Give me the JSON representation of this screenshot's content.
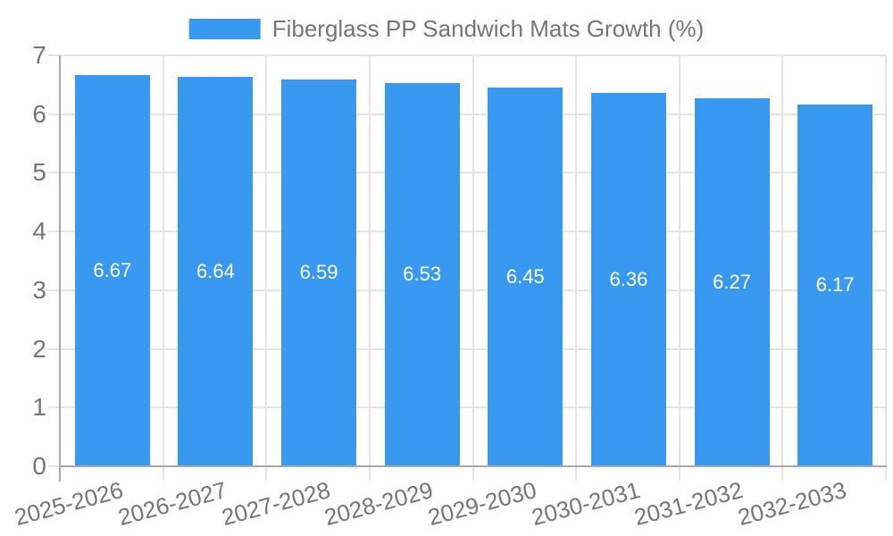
{
  "legend": {
    "label": "Fiberglass PP Sandwich Mats Growth (%)"
  },
  "chart_data": {
    "type": "bar",
    "title": "",
    "series_name": "Fiberglass PP Sandwich Mats Growth (%)",
    "categories": [
      "2025-2026",
      "2026-2027",
      "2027-2028",
      "2028-2029",
      "2029-2030",
      "2030-2031",
      "2031-2032",
      "2032-2033"
    ],
    "values": [
      6.67,
      6.64,
      6.59,
      6.53,
      6.45,
      6.36,
      6.27,
      6.17
    ],
    "bar_labels": [
      "6.67",
      "6.64",
      "6.59",
      "6.53",
      "6.45",
      "6.36",
      "6.27",
      "6.17"
    ],
    "ylim": [
      0,
      7
    ],
    "yticks": [
      0,
      1,
      2,
      3,
      4,
      5,
      6,
      7
    ],
    "grid": true,
    "legend_position": "top-center",
    "x_label_rotation_deg": -15,
    "colors": {
      "bar": "#3999f0",
      "bar_label": "#ffffff",
      "axis_line": "#a8a8a8",
      "grid_line": "#e4e4e4",
      "tick_label": "#757575"
    }
  }
}
